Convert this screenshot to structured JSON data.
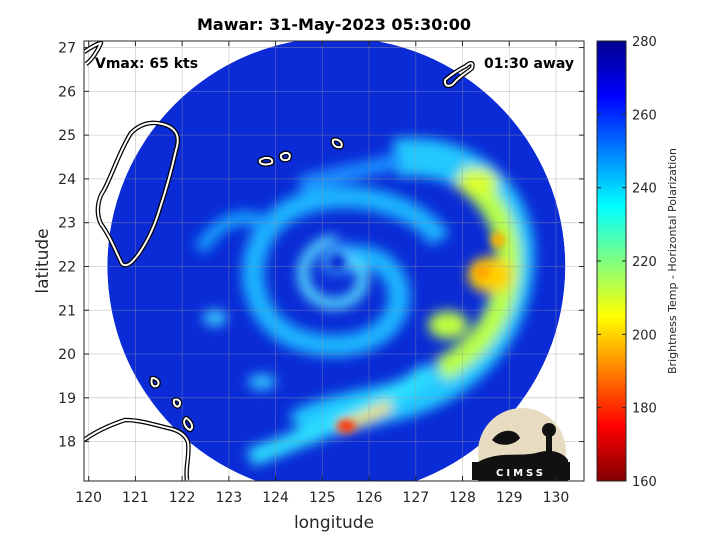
{
  "chart_data": {
    "type": "heatmap",
    "title": "Mawar: 31-May-2023 05:30:00",
    "xlabel": "longitude",
    "ylabel": "latitude",
    "xlim": [
      119.9,
      130.6
    ],
    "ylim": [
      17.1,
      27.15
    ],
    "x_ticks": [
      120,
      121,
      122,
      123,
      124,
      125,
      126,
      127,
      128,
      129,
      130
    ],
    "y_ticks": [
      18,
      19,
      20,
      21,
      22,
      23,
      24,
      25,
      26,
      27
    ],
    "grid": true,
    "annotations": {
      "vmax": "Vmax: 65 kts",
      "time_offset": "01:30 away"
    },
    "colorbar": {
      "label": "Brightness Temp - Horizontal Polarization",
      "min": 160,
      "max": 280,
      "ticks": [
        160,
        180,
        200,
        220,
        240,
        260,
        280
      ],
      "colormap": "jet",
      "position": "right"
    },
    "storm_center": {
      "lon": 125.3,
      "lat": 22.1
    },
    "swath_center": {
      "lon": 125.3,
      "lat": 22.0
    },
    "swath_radius_deg": 4.9,
    "logo_text": "CIMSS",
    "coast_color": "#ffffff",
    "background_color": "#0a2bd6"
  }
}
